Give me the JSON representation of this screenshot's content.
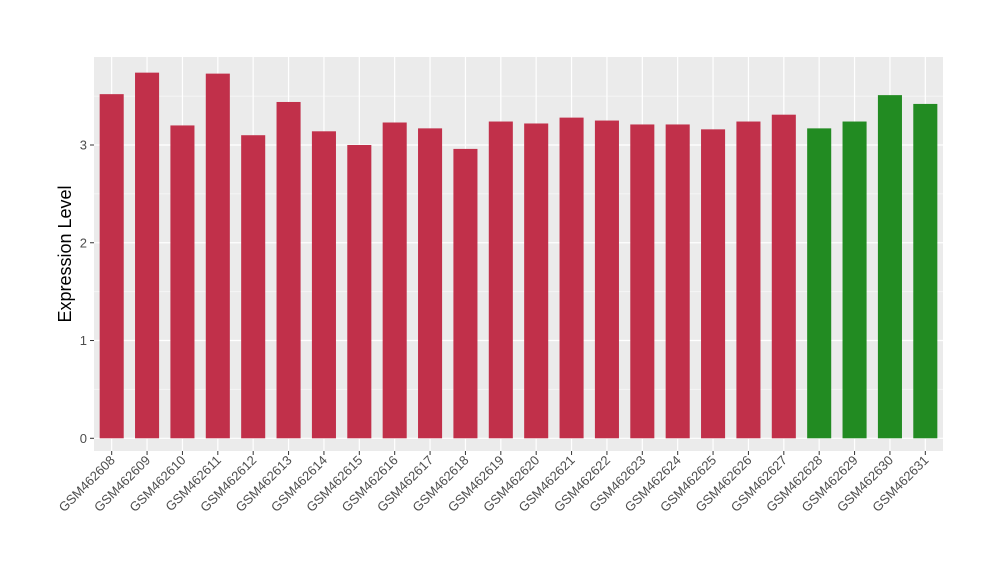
{
  "chart_data": {
    "type": "bar",
    "title": "",
    "xlabel": "",
    "ylabel": "Expression Level",
    "ylim": [
      -0.13,
      3.9
    ],
    "yticks": [
      0,
      1,
      2,
      3
    ],
    "grid": true,
    "legend": "none",
    "colors": {
      "panel_background": "#ebebeb",
      "grid_major": "#ffffff",
      "grid_minor": "#f5f5f5",
      "series_a": "#c1304a",
      "series_b": "#228b22"
    },
    "categories": [
      "GSM462608",
      "GSM462609",
      "GSM462610",
      "GSM462611",
      "GSM462612",
      "GSM462613",
      "GSM462614",
      "GSM462615",
      "GSM462616",
      "GSM462617",
      "GSM462618",
      "GSM462619",
      "GSM462620",
      "GSM462621",
      "GSM462622",
      "GSM462623",
      "GSM462624",
      "GSM462625",
      "GSM462626",
      "GSM462627",
      "GSM462628",
      "GSM462629",
      "GSM462630",
      "GSM462631"
    ],
    "values": [
      3.52,
      3.74,
      3.2,
      3.73,
      3.1,
      3.44,
      3.14,
      3.0,
      3.23,
      3.17,
      2.96,
      3.24,
      3.22,
      3.28,
      3.25,
      3.21,
      3.21,
      3.16,
      3.24,
      3.31,
      3.17,
      3.24,
      3.51,
      3.42
    ],
    "bar_groups": [
      "a",
      "a",
      "a",
      "a",
      "a",
      "a",
      "a",
      "a",
      "a",
      "a",
      "a",
      "a",
      "a",
      "a",
      "a",
      "a",
      "a",
      "a",
      "a",
      "a",
      "b",
      "b",
      "b",
      "b"
    ]
  }
}
